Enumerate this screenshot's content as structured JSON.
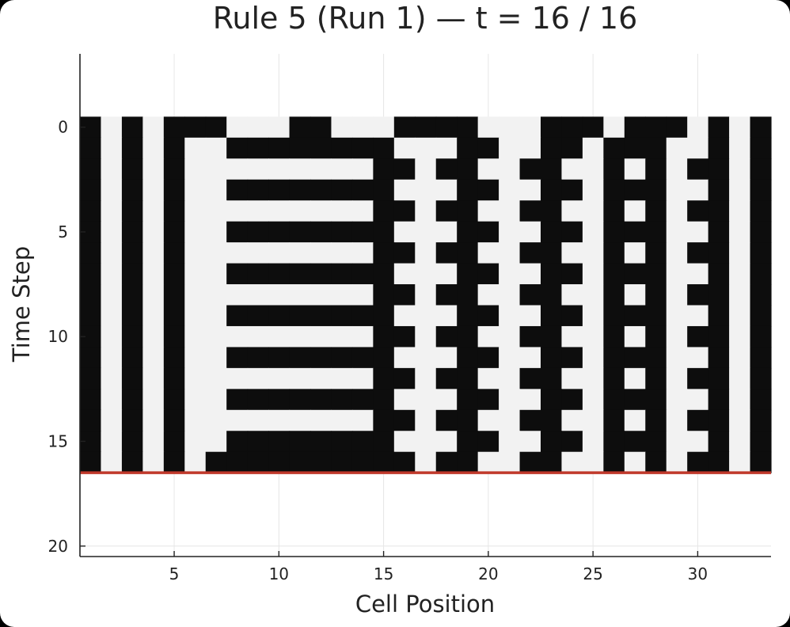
{
  "chart_data": {
    "type": "heatmap",
    "title": "Rule 5 (Run 1) — t = 16 / 16",
    "xlabel": "Cell Position",
    "ylabel": "Time Step",
    "xlim": [
      0.5,
      33.5
    ],
    "ylim": [
      20.5,
      -3.5
    ],
    "y_reversed": true,
    "x_ticks": [
      5,
      10,
      15,
      20,
      25,
      30
    ],
    "y_ticks": [
      0,
      5,
      10,
      15,
      20
    ],
    "x_ticklabels": [
      "5",
      "10",
      "15",
      "20",
      "25",
      "30"
    ],
    "y_ticklabels": [
      "0",
      "5",
      "10",
      "15",
      "20"
    ],
    "grid": true,
    "colors": {
      "on": "#0d0d0d",
      "off": "#f2f2f2",
      "marker": "#c0392b",
      "axis": "#222222"
    },
    "current_step": 16,
    "total_steps": 16,
    "marker_line_y": 16.5,
    "grid_rows": [
      "101011100011000111100011101110101",
      "101010011111111000110011011100101",
      "101010000000001101100110010101101",
      "101010011111111000110011011100101",
      "101010000000001101100110010101101",
      "101010011111111000110011011100101",
      "101010000000001101100110010101101",
      "101010011111111000110011011100101",
      "101010000000001101100110010101101",
      "101010011111111000110011011100101",
      "101010000000001101100110010101101",
      "101010011111111000110011011100101",
      "101010000000001101100110010101101",
      "101010011111111000110011011100101",
      "101010000000001101100110010101101",
      "101010011111111000110011011100101",
      "101010111111111101100110010101101"
    ]
  }
}
